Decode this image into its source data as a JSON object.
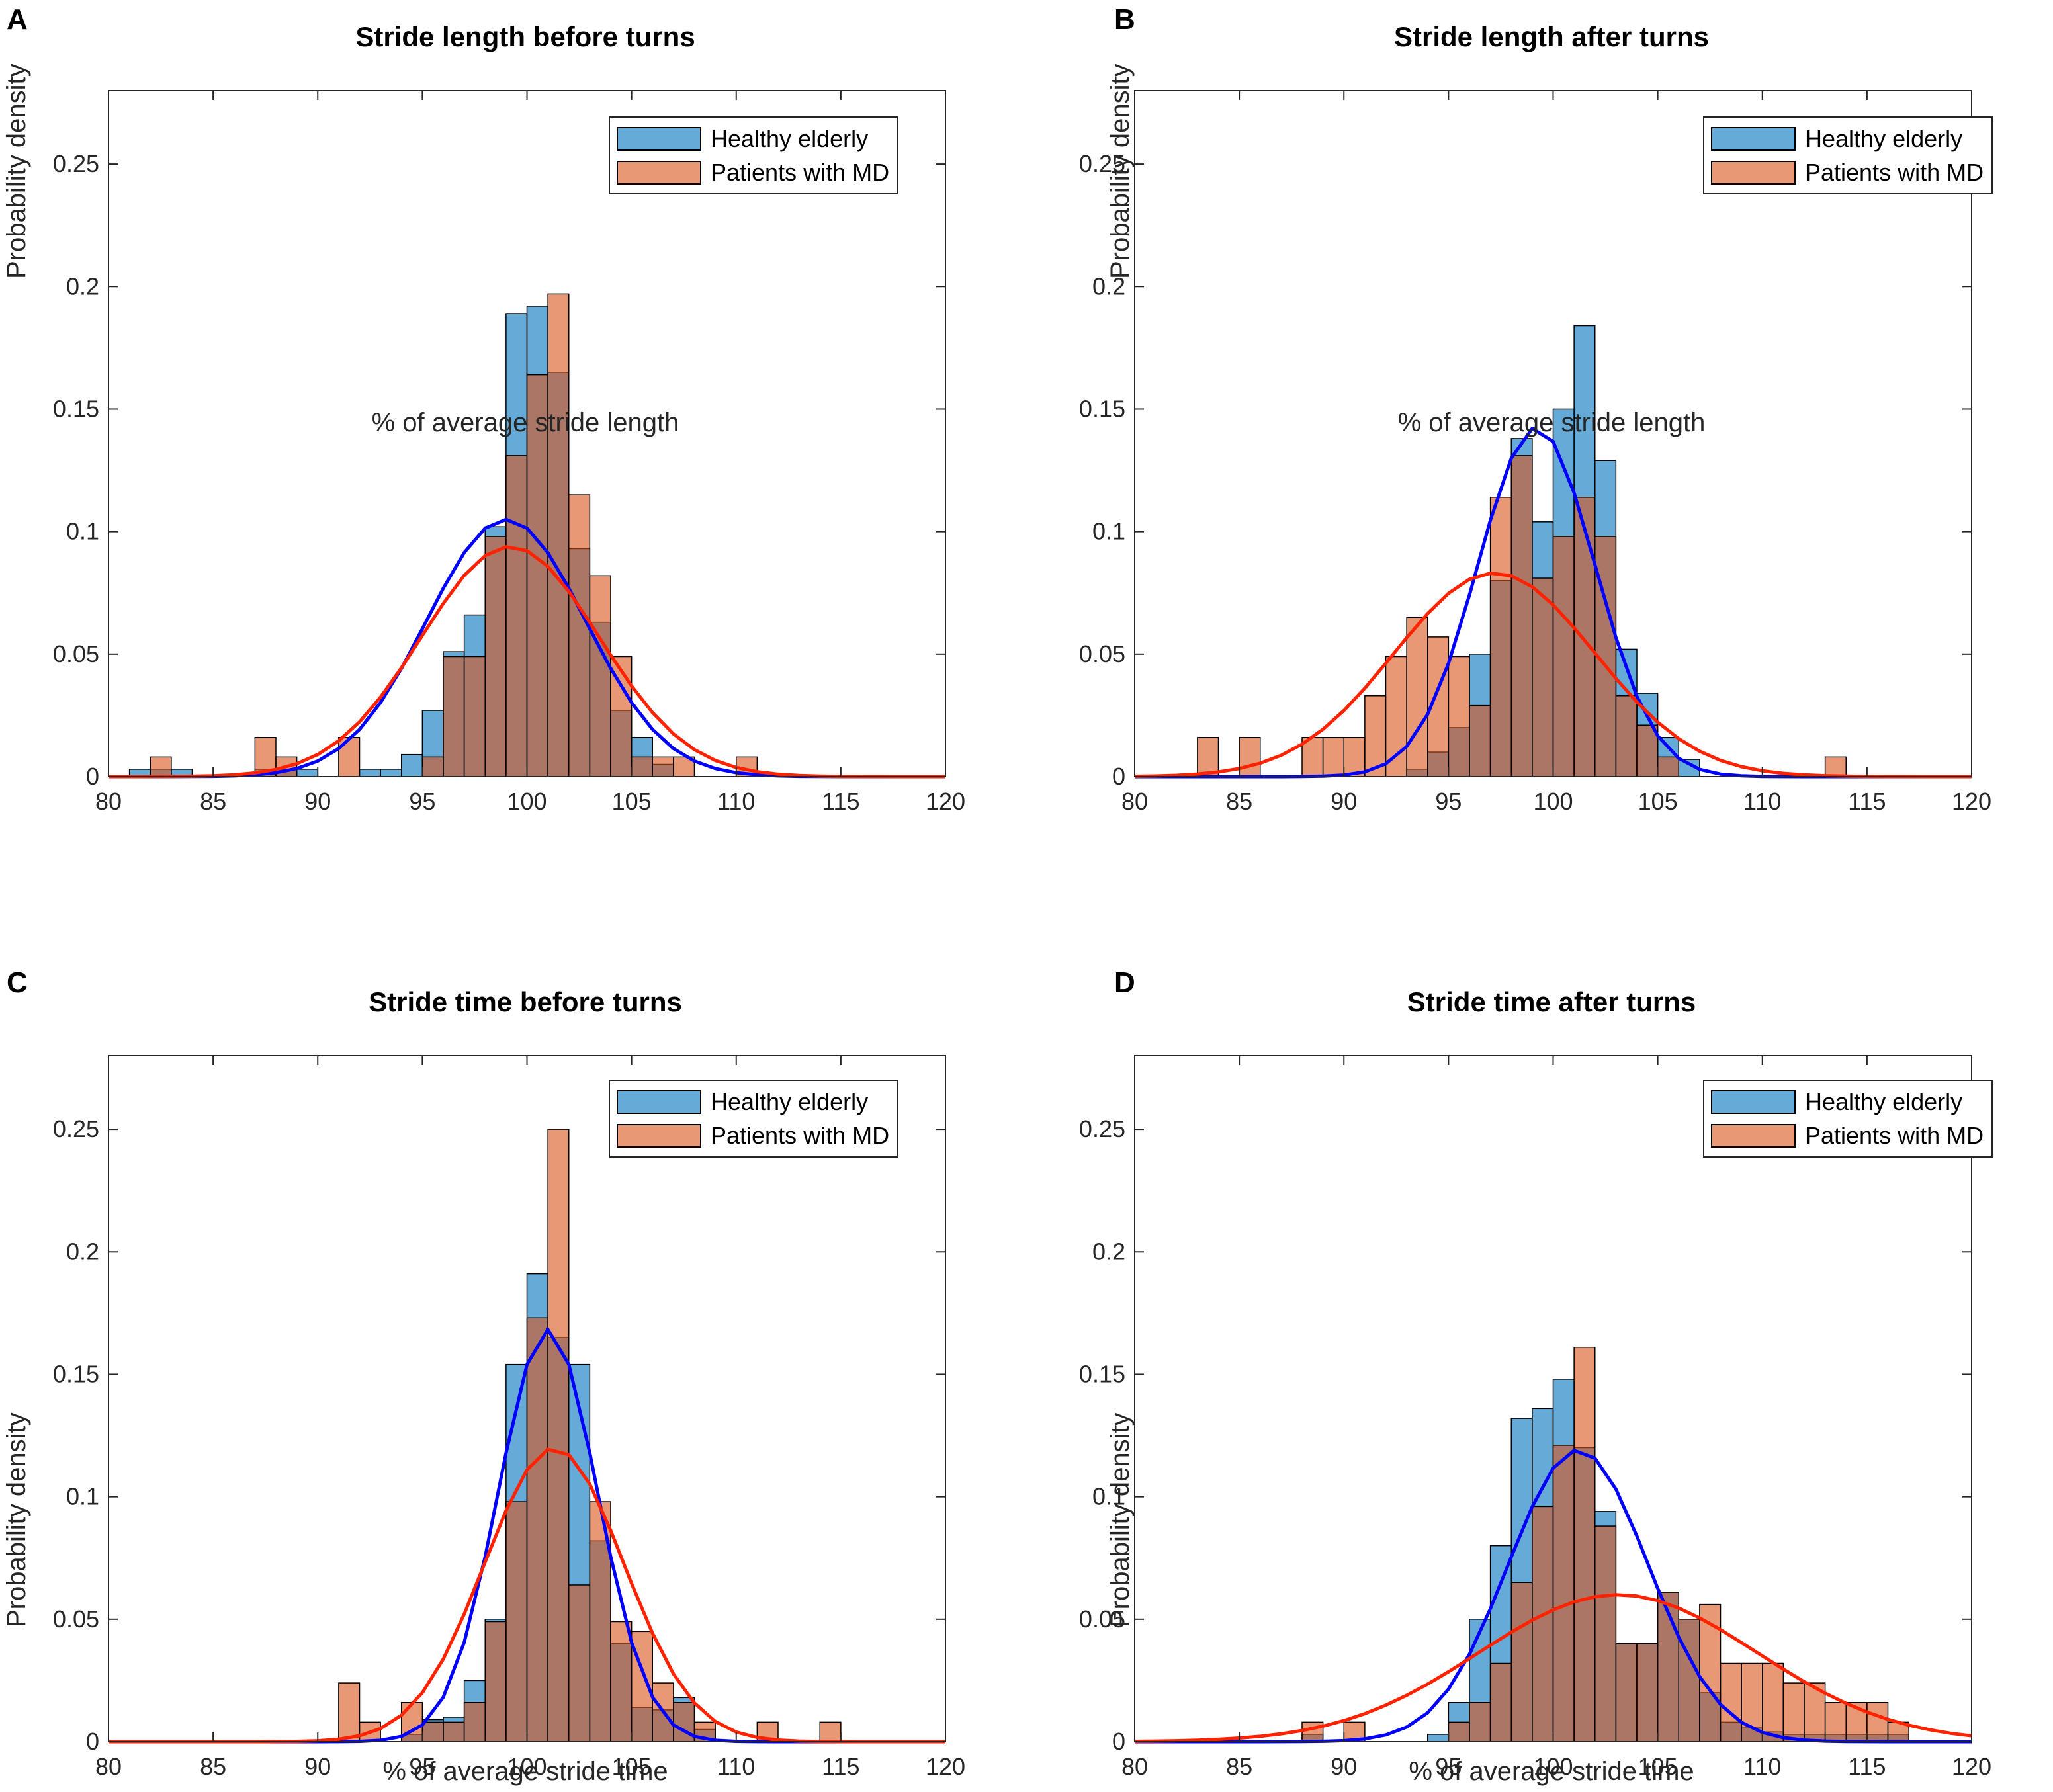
{
  "colors": {
    "healthy_bar": "#0072BD",
    "patients_bar": "#D95319",
    "healthy_curve": "#0000FF",
    "patients_curve": "#FF2200"
  },
  "chart_data": [
    {
      "id": "A",
      "type": "bar",
      "title": "Stride length before turns",
      "xlabel": "% of average stride length",
      "ylabel": "Probability density",
      "xlim": [
        80,
        120
      ],
      "ylim": [
        0,
        0.28
      ],
      "xticks": [
        80,
        85,
        90,
        95,
        100,
        105,
        110,
        115,
        120
      ],
      "yticks": [
        0,
        0.05,
        0.1,
        0.15,
        0.2,
        0.25
      ],
      "legend": [
        "Healthy elderly",
        "Patients with MD"
      ],
      "legend_position": "top-right",
      "bin_width": 1,
      "healthy_bins": {
        "x0": [
          81,
          82,
          83,
          84,
          85,
          86,
          87,
          88,
          89,
          90,
          91,
          92,
          93,
          94,
          95,
          96,
          97,
          98,
          99,
          100,
          101,
          102,
          103,
          104,
          105,
          106,
          107,
          108,
          109,
          110
        ],
        "values": [
          0.003,
          0.003,
          0.003,
          0,
          0,
          0,
          0.003,
          0.003,
          0.003,
          0,
          0,
          0.003,
          0.003,
          0.009,
          0.027,
          0.051,
          0.066,
          0.102,
          0.189,
          0.192,
          0.165,
          0.093,
          0.063,
          0.027,
          0.016,
          0.005,
          0,
          0,
          0,
          0
        ]
      },
      "patients_bins": {
        "x0": [
          81,
          82,
          83,
          84,
          85,
          86,
          87,
          88,
          89,
          90,
          91,
          92,
          93,
          94,
          95,
          96,
          97,
          98,
          99,
          100,
          101,
          102,
          103,
          104,
          105,
          106,
          107,
          108,
          109,
          110
        ],
        "values": [
          0,
          0.008,
          0,
          0,
          0,
          0,
          0.016,
          0.008,
          0,
          0,
          0.016,
          0,
          0,
          0,
          0.008,
          0.049,
          0.049,
          0.098,
          0.131,
          0.164,
          0.197,
          0.115,
          0.082,
          0.049,
          0.008,
          0.008,
          0.008,
          0,
          0,
          0.008
        ]
      },
      "healthy_fit": {
        "mean": 99.0,
        "std": 3.8
      },
      "patients_fit": {
        "mean": 99.2,
        "std": 4.25
      }
    },
    {
      "id": "B",
      "type": "bar",
      "title": "Stride length after turns",
      "xlabel": "% of average stride length",
      "ylabel": "Probability density",
      "xlim": [
        80,
        120
      ],
      "ylim": [
        0,
        0.28
      ],
      "xticks": [
        80,
        85,
        90,
        95,
        100,
        105,
        110,
        115,
        120
      ],
      "yticks": [
        0,
        0.05,
        0.1,
        0.15,
        0.2,
        0.25
      ],
      "legend": [
        "Healthy elderly",
        "Patients with MD"
      ],
      "legend_position": "top-right",
      "bin_width": 1,
      "healthy_bins": {
        "x0": [
          83,
          84,
          85,
          86,
          87,
          88,
          89,
          90,
          91,
          92,
          93,
          94,
          95,
          96,
          97,
          98,
          99,
          100,
          101,
          102,
          103,
          104,
          105,
          106,
          107,
          108,
          109,
          110,
          111,
          112,
          113,
          114
        ],
        "values": [
          0,
          0,
          0,
          0,
          0,
          0,
          0,
          0,
          0,
          0,
          0.003,
          0.01,
          0.02,
          0.05,
          0.08,
          0.138,
          0.104,
          0.15,
          0.184,
          0.129,
          0.052,
          0.034,
          0.016,
          0.007,
          0,
          0,
          0,
          0,
          0,
          0,
          0,
          0
        ]
      },
      "patients_bins": {
        "x0": [
          83,
          84,
          85,
          86,
          87,
          88,
          89,
          90,
          91,
          92,
          93,
          94,
          95,
          96,
          97,
          98,
          99,
          100,
          101,
          102,
          103,
          104,
          105,
          106,
          107,
          108,
          109,
          110,
          111,
          112,
          113,
          114
        ],
        "values": [
          0.016,
          0,
          0.016,
          0,
          0,
          0.016,
          0.016,
          0.016,
          0.033,
          0.049,
          0.065,
          0.057,
          0.049,
          0.029,
          0.114,
          0.131,
          0.081,
          0.098,
          0.114,
          0.098,
          0.033,
          0.021,
          0.008,
          0,
          0,
          0,
          0,
          0,
          0,
          0,
          0.008,
          0
        ]
      },
      "healthy_fit": {
        "mean": 99.2,
        "std": 2.8
      },
      "patients_fit": {
        "mean": 97.2,
        "std": 4.8
      }
    },
    {
      "id": "C",
      "type": "bar",
      "title": "Stride time before turns",
      "xlabel": "% of average stride time",
      "ylabel": "Probability density",
      "xlim": [
        80,
        120
      ],
      "ylim": [
        0,
        0.28
      ],
      "xticks": [
        80,
        85,
        90,
        95,
        100,
        105,
        110,
        115,
        120
      ],
      "yticks": [
        0,
        0.05,
        0.1,
        0.15,
        0.2,
        0.25
      ],
      "legend": [
        "Healthy elderly",
        "Patients with MD"
      ],
      "legend_position": "top-right",
      "bin_width": 1,
      "healthy_bins": {
        "x0": [
          91,
          92,
          93,
          94,
          95,
          96,
          97,
          98,
          99,
          100,
          101,
          102,
          103,
          104,
          105,
          106,
          107,
          108,
          109,
          110,
          111,
          112,
          113,
          114
        ],
        "values": [
          0,
          0,
          0,
          0.003,
          0.009,
          0.01,
          0.025,
          0.05,
          0.154,
          0.191,
          0.165,
          0.154,
          0.082,
          0.04,
          0.014,
          0.013,
          0.018,
          0.005,
          0,
          0,
          0,
          0,
          0,
          0
        ]
      },
      "patients_bins": {
        "x0": [
          91,
          92,
          93,
          94,
          95,
          96,
          97,
          98,
          99,
          100,
          101,
          102,
          103,
          104,
          105,
          106,
          107,
          108,
          109,
          110,
          111,
          112,
          113,
          114
        ],
        "values": [
          0.024,
          0.008,
          0,
          0.016,
          0.008,
          0.008,
          0.016,
          0.049,
          0.098,
          0.173,
          0.25,
          0.064,
          0.098,
          0.049,
          0.045,
          0.024,
          0.016,
          0.008,
          0,
          0,
          0.008,
          0,
          0,
          0.008
        ]
      },
      "healthy_fit": {
        "mean": 101.0,
        "std": 2.37
      },
      "patients_fit": {
        "mean": 101.3,
        "std": 3.33
      }
    },
    {
      "id": "D",
      "type": "bar",
      "title": "Stride time after turns",
      "xlabel": "% of average stride time",
      "ylabel": "Probability density",
      "xlim": [
        80,
        120
      ],
      "ylim": [
        0,
        0.28
      ],
      "xticks": [
        80,
        85,
        90,
        95,
        100,
        105,
        110,
        115,
        120
      ],
      "yticks": [
        0,
        0.05,
        0.1,
        0.15,
        0.2,
        0.25
      ],
      "legend": [
        "Healthy elderly",
        "Patients with MD"
      ],
      "legend_position": "top-right",
      "bin_width": 1,
      "healthy_bins": {
        "x0": [
          88,
          89,
          90,
          91,
          92,
          93,
          94,
          95,
          96,
          97,
          98,
          99,
          100,
          101,
          102,
          103,
          104,
          105,
          106,
          107,
          108,
          109,
          110,
          111,
          112,
          113,
          114,
          115,
          116
        ],
        "values": [
          0.003,
          0,
          0,
          0,
          0,
          0,
          0.003,
          0.016,
          0.05,
          0.08,
          0.132,
          0.136,
          0.148,
          0.12,
          0.094,
          0.04,
          0.04,
          0.061,
          0.05,
          0.02,
          0.008,
          0.006,
          0.004,
          0.003,
          0.003,
          0.003,
          0.003,
          0.003,
          0.003
        ]
      },
      "patients_bins": {
        "x0": [
          88,
          89,
          90,
          91,
          92,
          93,
          94,
          95,
          96,
          97,
          98,
          99,
          100,
          101,
          102,
          103,
          104,
          105,
          106,
          107,
          108,
          109,
          110,
          111,
          112,
          113,
          114,
          115,
          116
        ],
        "values": [
          0.008,
          0,
          0.008,
          0,
          0,
          0,
          0,
          0.008,
          0.016,
          0.032,
          0.065,
          0.096,
          0.121,
          0.161,
          0.088,
          0.04,
          0.04,
          0.061,
          0.05,
          0.056,
          0.032,
          0.032,
          0.032,
          0.024,
          0.024,
          0.016,
          0.016,
          0.016,
          0.008
        ]
      },
      "healthy_fit": {
        "mean": 101.2,
        "std": 3.35
      },
      "patients_fit": {
        "mean": 103.1,
        "std": 6.65
      }
    }
  ]
}
